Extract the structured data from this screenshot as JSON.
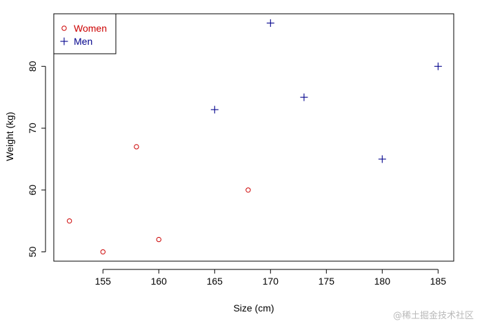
{
  "chart_data": {
    "type": "scatter",
    "title": "",
    "xlabel": "Size (cm)",
    "ylabel": "Weight (kg)",
    "xlim": [
      150.6,
      186.4
    ],
    "ylim": [
      48.5,
      88.5
    ],
    "xticks": [
      155,
      160,
      165,
      170,
      175,
      180,
      185
    ],
    "yticks": [
      50,
      60,
      70,
      80
    ],
    "grid": false,
    "legend_position": "top-left",
    "series": [
      {
        "name": "Women",
        "marker": "circle",
        "color": "#cc0000",
        "x": [
          152,
          155,
          158,
          160,
          168
        ],
        "y": [
          55,
          50,
          67,
          52,
          60
        ]
      },
      {
        "name": "Men",
        "marker": "plus",
        "color": "#00008b",
        "x": [
          165,
          170,
          173,
          180,
          185
        ],
        "y": [
          73,
          87,
          75,
          65,
          80
        ]
      }
    ]
  },
  "watermark": "@稀土掘金技术社区"
}
